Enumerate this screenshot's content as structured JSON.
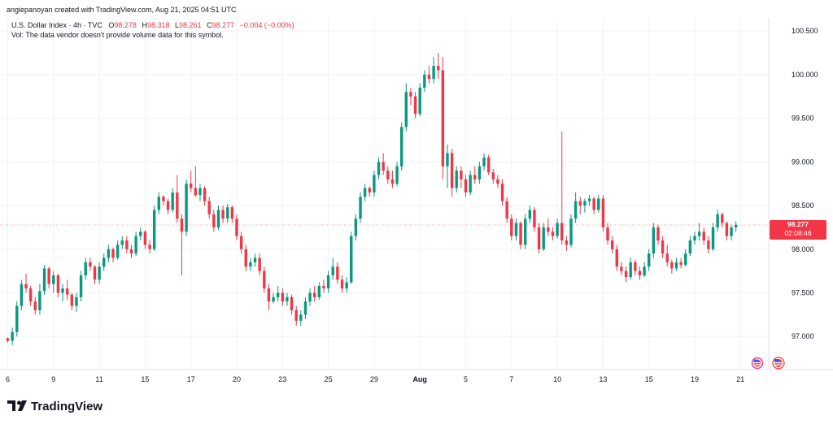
{
  "header": {
    "attribution": "angiepanoyan created with TradingView.com, Aug 21, 2025 04:51 UTC",
    "symbol_line": "U.S. Dollar Index · 4h · TVC",
    "ohlc": [
      {
        "label": "O",
        "value": "98.278"
      },
      {
        "label": "H",
        "value": "98.318"
      },
      {
        "label": "L",
        "value": "98.261"
      },
      {
        "label": "C",
        "value": "98.277"
      }
    ],
    "change": "−0.004 (−0.00%)",
    "volume_note": "Vol: The data vendor doesn't provide volume data for this symbol."
  },
  "last_price": {
    "value": "98.277",
    "countdown": "02:08:46"
  },
  "branding": {
    "name": "TradingView"
  },
  "colors": {
    "up": "#089981",
    "down": "#f23645",
    "grid": "#f0f3fa",
    "accent": "#f23645"
  },
  "icons": [
    "us-flag-event-icon",
    "us-flag-event-icon"
  ],
  "chart_data": {
    "type": "candlestick",
    "title": "U.S. Dollar Index · 4h · TVC",
    "ylim": [
      96.63,
      100.65
    ],
    "y_ticks": [
      "100.500",
      "100.000",
      "99.500",
      "99.000",
      "98.500",
      "98.000",
      "97.500",
      "97.000"
    ],
    "x_ticks": [
      {
        "label": "6",
        "at": 0
      },
      {
        "label": "9",
        "at": 10
      },
      {
        "label": "11",
        "at": 20
      },
      {
        "label": "15",
        "at": 30
      },
      {
        "label": "17",
        "at": 40
      },
      {
        "label": "20",
        "at": 50
      },
      {
        "label": "23",
        "at": 60
      },
      {
        "label": "25",
        "at": 70
      },
      {
        "label": "29",
        "at": 80
      },
      {
        "label": "Aug",
        "at": 90,
        "bold": true
      },
      {
        "label": "5",
        "at": 100
      },
      {
        "label": "7",
        "at": 110
      },
      {
        "label": "10",
        "at": 120
      },
      {
        "label": "13",
        "at": 130
      },
      {
        "label": "15",
        "at": 140
      },
      {
        "label": "19",
        "at": 150
      },
      {
        "label": "21",
        "at": 160
      }
    ],
    "candles": [
      [
        96.98,
        96.99,
        96.93,
        96.95
      ],
      [
        96.95,
        97.1,
        96.9,
        97.05
      ],
      [
        97.05,
        97.4,
        97.0,
        97.35
      ],
      [
        97.35,
        97.65,
        97.3,
        97.6
      ],
      [
        97.6,
        97.72,
        97.5,
        97.55
      ],
      [
        97.55,
        97.58,
        97.35,
        97.4
      ],
      [
        97.4,
        97.45,
        97.25,
        97.3
      ],
      [
        97.3,
        97.6,
        97.25,
        97.52
      ],
      [
        97.52,
        97.82,
        97.48,
        97.78
      ],
      [
        97.78,
        97.8,
        97.55,
        97.6
      ],
      [
        97.6,
        97.75,
        97.5,
        97.7
      ],
      [
        97.7,
        97.72,
        97.45,
        97.5
      ],
      [
        97.5,
        97.6,
        97.4,
        97.55
      ],
      [
        97.55,
        97.65,
        97.42,
        97.48
      ],
      [
        97.48,
        97.5,
        97.3,
        97.35
      ],
      [
        97.35,
        97.5,
        97.28,
        97.45
      ],
      [
        97.45,
        97.75,
        97.4,
        97.7
      ],
      [
        97.7,
        97.9,
        97.65,
        97.85
      ],
      [
        97.85,
        97.9,
        97.75,
        97.8
      ],
      [
        97.8,
        97.82,
        97.6,
        97.65
      ],
      [
        97.65,
        97.85,
        97.6,
        97.8
      ],
      [
        97.8,
        97.95,
        97.75,
        97.9
      ],
      [
        97.9,
        98.05,
        97.85,
        98.0
      ],
      [
        98.0,
        98.02,
        97.85,
        97.9
      ],
      [
        97.9,
        98.1,
        97.88,
        98.05
      ],
      [
        98.05,
        98.15,
        98.0,
        98.1
      ],
      [
        98.1,
        98.15,
        97.95,
        98.0
      ],
      [
        98.0,
        98.05,
        97.9,
        97.95
      ],
      [
        97.95,
        98.2,
        97.92,
        98.15
      ],
      [
        98.15,
        98.25,
        98.1,
        98.2
      ],
      [
        98.2,
        98.22,
        98.0,
        98.05
      ],
      [
        98.05,
        98.1,
        97.95,
        98.0
      ],
      [
        98.0,
        98.5,
        97.98,
        98.45
      ],
      [
        98.45,
        98.65,
        98.4,
        98.6
      ],
      [
        98.6,
        98.62,
        98.5,
        98.55
      ],
      [
        98.55,
        98.58,
        98.4,
        98.45
      ],
      [
        98.45,
        98.7,
        98.42,
        98.65
      ],
      [
        98.65,
        98.85,
        98.3,
        98.35
      ],
      [
        98.35,
        98.4,
        97.7,
        98.2
      ],
      [
        98.2,
        98.8,
        98.15,
        98.75
      ],
      [
        98.75,
        98.9,
        98.65,
        98.7
      ],
      [
        98.7,
        98.95,
        98.6,
        98.62
      ],
      [
        98.62,
        98.75,
        98.55,
        98.7
      ],
      [
        98.7,
        98.72,
        98.5,
        98.55
      ],
      [
        98.55,
        98.6,
        98.35,
        98.4
      ],
      [
        98.4,
        98.45,
        98.2,
        98.25
      ],
      [
        98.25,
        98.5,
        98.22,
        98.45
      ],
      [
        98.45,
        98.5,
        98.3,
        98.35
      ],
      [
        98.35,
        98.52,
        98.3,
        98.48
      ],
      [
        98.48,
        98.5,
        98.3,
        98.35
      ],
      [
        98.35,
        98.4,
        98.1,
        98.15
      ],
      [
        98.15,
        98.2,
        97.95,
        98.0
      ],
      [
        98.0,
        98.05,
        97.75,
        97.8
      ],
      [
        97.8,
        97.9,
        97.75,
        97.85
      ],
      [
        97.85,
        97.95,
        97.8,
        97.9
      ],
      [
        97.9,
        97.95,
        97.7,
        97.75
      ],
      [
        97.75,
        97.8,
        97.5,
        97.55
      ],
      [
        97.55,
        97.6,
        97.3,
        97.4
      ],
      [
        97.4,
        97.5,
        97.38,
        97.45
      ],
      [
        97.45,
        97.58,
        97.4,
        97.5
      ],
      [
        97.5,
        97.55,
        97.35,
        97.4
      ],
      [
        97.4,
        97.5,
        97.35,
        97.45
      ],
      [
        97.45,
        97.48,
        97.25,
        97.3
      ],
      [
        97.3,
        97.35,
        97.12,
        97.18
      ],
      [
        97.18,
        97.3,
        97.12,
        97.25
      ],
      [
        97.25,
        97.45,
        97.2,
        97.4
      ],
      [
        97.4,
        97.55,
        97.35,
        97.5
      ],
      [
        97.5,
        97.58,
        97.4,
        97.45
      ],
      [
        97.45,
        97.62,
        97.42,
        97.58
      ],
      [
        97.58,
        97.65,
        97.5,
        97.55
      ],
      [
        97.55,
        97.75,
        97.5,
        97.7
      ],
      [
        97.7,
        97.9,
        97.65,
        97.8
      ],
      [
        97.8,
        97.85,
        97.6,
        97.65
      ],
      [
        97.65,
        97.7,
        97.5,
        97.55
      ],
      [
        97.55,
        97.68,
        97.5,
        97.62
      ],
      [
        97.62,
        98.2,
        97.6,
        98.15
      ],
      [
        98.15,
        98.4,
        98.1,
        98.35
      ],
      [
        98.35,
        98.65,
        98.3,
        98.6
      ],
      [
        98.6,
        98.75,
        98.55,
        98.7
      ],
      [
        98.7,
        98.72,
        98.6,
        98.65
      ],
      [
        98.65,
        98.9,
        98.6,
        98.85
      ],
      [
        98.85,
        99.05,
        98.8,
        99.0
      ],
      [
        99.0,
        99.1,
        98.85,
        98.9
      ],
      [
        98.9,
        98.95,
        98.75,
        98.8
      ],
      [
        98.8,
        98.9,
        98.7,
        98.75
      ],
      [
        98.75,
        99.0,
        98.72,
        98.95
      ],
      [
        98.95,
        99.45,
        98.9,
        99.4
      ],
      [
        99.4,
        99.9,
        99.35,
        99.8
      ],
      [
        99.8,
        99.85,
        99.65,
        99.75
      ],
      [
        99.75,
        99.8,
        99.5,
        99.55
      ],
      [
        99.55,
        99.9,
        99.52,
        99.85
      ],
      [
        99.85,
        100.05,
        99.8,
        100.0
      ],
      [
        100.0,
        100.1,
        99.9,
        99.95
      ],
      [
        99.95,
        100.2,
        99.9,
        100.1
      ],
      [
        100.1,
        100.25,
        99.95,
        100.05
      ],
      [
        100.05,
        100.2,
        98.8,
        98.95
      ],
      [
        98.95,
        99.2,
        98.7,
        99.1
      ],
      [
        99.1,
        99.15,
        98.6,
        98.7
      ],
      [
        98.7,
        98.95,
        98.65,
        98.9
      ],
      [
        98.9,
        98.95,
        98.7,
        98.8
      ],
      [
        98.8,
        98.85,
        98.6,
        98.65
      ],
      [
        98.65,
        98.9,
        98.62,
        98.85
      ],
      [
        98.85,
        98.95,
        98.75,
        98.8
      ],
      [
        98.8,
        99.0,
        98.75,
        98.95
      ],
      [
        98.95,
        99.1,
        98.9,
        99.05
      ],
      [
        99.05,
        99.08,
        98.85,
        98.88
      ],
      [
        98.88,
        98.92,
        98.75,
        98.8
      ],
      [
        98.8,
        98.85,
        98.7,
        98.75
      ],
      [
        98.75,
        98.8,
        98.5,
        98.55
      ],
      [
        98.55,
        98.6,
        98.3,
        98.35
      ],
      [
        98.35,
        98.4,
        98.1,
        98.15
      ],
      [
        98.15,
        98.35,
        98.1,
        98.3
      ],
      [
        98.3,
        98.32,
        98.0,
        98.05
      ],
      [
        98.05,
        98.4,
        98.0,
        98.35
      ],
      [
        98.35,
        98.5,
        98.3,
        98.45
      ],
      [
        98.45,
        98.48,
        98.2,
        98.25
      ],
      [
        98.25,
        98.3,
        97.95,
        98.0
      ],
      [
        98.0,
        98.3,
        97.98,
        98.25
      ],
      [
        98.25,
        98.35,
        98.15,
        98.2
      ],
      [
        98.2,
        98.25,
        98.1,
        98.15
      ],
      [
        98.15,
        98.35,
        98.12,
        98.3
      ],
      [
        98.3,
        99.35,
        98.05,
        98.1
      ],
      [
        98.1,
        98.15,
        97.98,
        98.05
      ],
      [
        98.05,
        98.4,
        98.02,
        98.35
      ],
      [
        98.35,
        98.65,
        98.3,
        98.55
      ],
      [
        98.55,
        98.6,
        98.4,
        98.5
      ],
      [
        98.5,
        98.58,
        98.42,
        98.55
      ],
      [
        98.55,
        98.62,
        98.5,
        98.58
      ],
      [
        98.58,
        98.6,
        98.4,
        98.45
      ],
      [
        98.45,
        98.62,
        98.42,
        98.58
      ],
      [
        98.58,
        98.62,
        98.2,
        98.25
      ],
      [
        98.25,
        98.3,
        98.05,
        98.1
      ],
      [
        98.1,
        98.15,
        97.95,
        98.0
      ],
      [
        98.0,
        98.05,
        97.75,
        97.8
      ],
      [
        97.8,
        97.85,
        97.7,
        97.75
      ],
      [
        97.75,
        97.8,
        97.62,
        97.68
      ],
      [
        97.68,
        97.9,
        97.65,
        97.85
      ],
      [
        97.85,
        97.88,
        97.7,
        97.75
      ],
      [
        97.75,
        97.8,
        97.65,
        97.7
      ],
      [
        97.7,
        97.85,
        97.68,
        97.8
      ],
      [
        97.8,
        98.0,
        97.75,
        97.95
      ],
      [
        97.95,
        98.3,
        97.9,
        98.25
      ],
      [
        98.25,
        98.28,
        98.05,
        98.1
      ],
      [
        98.1,
        98.15,
        97.9,
        97.95
      ],
      [
        97.95,
        98.05,
        97.8,
        97.85
      ],
      [
        97.85,
        97.88,
        97.72,
        97.78
      ],
      [
        97.78,
        97.9,
        97.75,
        97.85
      ],
      [
        97.85,
        97.9,
        97.78,
        97.82
      ],
      [
        97.82,
        98.0,
        97.8,
        97.95
      ],
      [
        97.95,
        98.15,
        97.92,
        98.1
      ],
      [
        98.1,
        98.2,
        98.05,
        98.15
      ],
      [
        98.15,
        98.3,
        98.1,
        98.2
      ],
      [
        98.2,
        98.25,
        98.05,
        98.1
      ],
      [
        98.1,
        98.15,
        97.95,
        98.0
      ],
      [
        98.0,
        98.3,
        97.98,
        98.25
      ],
      [
        98.25,
        98.45,
        98.2,
        98.4
      ],
      [
        98.4,
        98.42,
        98.25,
        98.3
      ],
      [
        98.3,
        98.32,
        98.1,
        98.15
      ],
      [
        98.15,
        98.28,
        98.1,
        98.25
      ],
      [
        98.25,
        98.32,
        98.2,
        98.28
      ]
    ]
  }
}
